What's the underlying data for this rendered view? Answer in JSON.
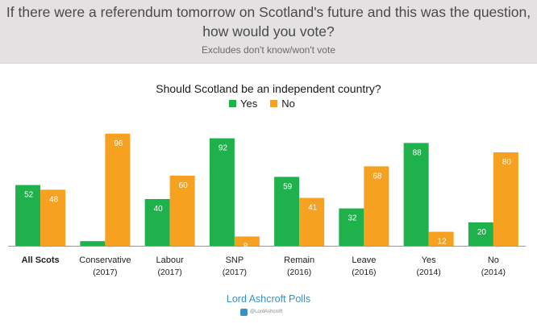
{
  "header": {
    "line1": "If there were a referendum tomorrow on Scotland's future and this was the question,",
    "line2": "how would you vote?",
    "note": "Excludes don't know/won't vote"
  },
  "colors": {
    "yes": "#1fb14b",
    "no": "#f6a11f",
    "header_bg": "#e3e1e1",
    "footer": "#3b8fc6"
  },
  "chart_data": {
    "type": "bar",
    "title": "Should Scotland be an independent country?",
    "legend_position": "top-center",
    "categories": [
      {
        "name": "All Scots",
        "year": ""
      },
      {
        "name": "Conservative",
        "year": "(2017)"
      },
      {
        "name": "Labour",
        "year": "(2017)"
      },
      {
        "name": "SNP",
        "year": "(2017)"
      },
      {
        "name": "Remain",
        "year": "(2016)"
      },
      {
        "name": "Leave",
        "year": "(2016)"
      },
      {
        "name": "Yes",
        "year": "(2014)"
      },
      {
        "name": "No",
        "year": "(2014)"
      }
    ],
    "series": [
      {
        "name": "Yes",
        "values": [
          52,
          4,
          40,
          92,
          59,
          32,
          88,
          20
        ]
      },
      {
        "name": "No",
        "values": [
          48,
          96,
          60,
          8,
          41,
          68,
          12,
          80
        ]
      }
    ],
    "ylim": [
      0,
      100
    ],
    "xlabel": "",
    "ylabel": ""
  },
  "footer": {
    "source": "Lord Ashcroft Polls",
    "handle": "@LordAshcroft"
  }
}
